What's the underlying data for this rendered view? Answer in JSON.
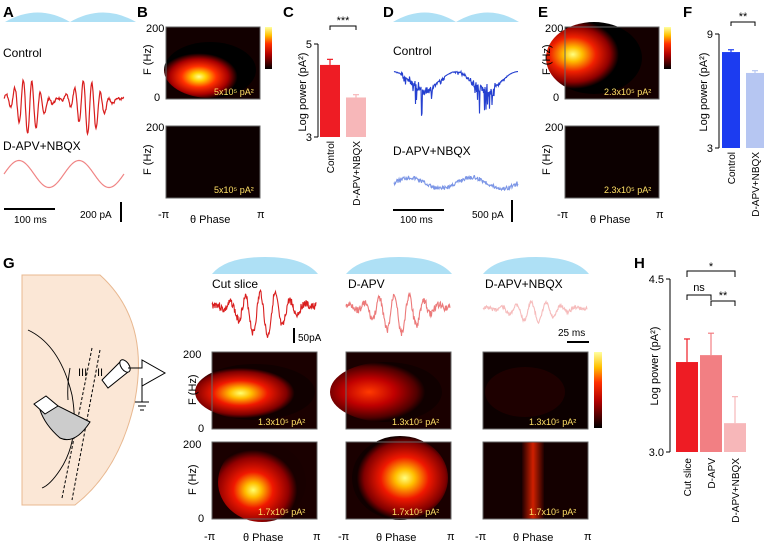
{
  "panels": {
    "A": {
      "letter": "A",
      "control_label": "Control",
      "drug_label": "D-APV+NBQX",
      "time_scale": "100 ms",
      "amp_scale": "200 pA"
    },
    "B": {
      "letter": "B",
      "ylabel": "F (Hz)",
      "ytick_top": "200",
      "ytick_bottom": "0",
      "power_label_top": "5x10⁵ pA²",
      "power_label_bottom": "5x10⁵ pA²",
      "xticks": [
        "-π",
        "π"
      ],
      "xlabel": "θ Phase"
    },
    "C": {
      "letter": "C",
      "sig": "***"
    },
    "D": {
      "letter": "D",
      "control_label": "Control",
      "drug_label": "D-APV+NBQX",
      "time_scale": "100 ms",
      "amp_scale": "500 pA"
    },
    "E": {
      "letter": "E",
      "ylabel": "F (Hz)",
      "ytick_top": "200",
      "ytick_bottom": "0",
      "power_label_top": "2.3x10⁵ pA²",
      "power_label_bottom": "2.3x10⁵ pA²",
      "xticks": [
        "-π",
        "π"
      ],
      "xlabel": "θ Phase"
    },
    "F": {
      "letter": "F",
      "sig": "**"
    },
    "G": {
      "letter": "G",
      "layer_labels": [
        "III",
        "II"
      ],
      "trace_titles": [
        "Cut slice",
        "D-APV",
        "D-APV+NBQX"
      ],
      "amp_scale": "50pA",
      "time_scale": "25 ms",
      "ylabel": "F (Hz)",
      "ytick_top": "200",
      "ytick_bottom": "0",
      "power_label_top": "1.3x10⁵ pA²",
      "power_label_bottom": "1.7x10⁵ pA²",
      "xticks": [
        "-π",
        "π"
      ],
      "xlabel": "θ Phase"
    },
    "H": {
      "letter": "H",
      "sig_ns": "ns",
      "sig_star": "*",
      "sig_dstar": "**"
    }
  },
  "chart_data": [
    {
      "id": "C",
      "type": "bar",
      "categories": [
        "Control",
        "D-APV+NBQX"
      ],
      "values": [
        4.55,
        3.85
      ],
      "errors": [
        0.12,
        0.06
      ],
      "ylabel": "Log power (pA²)",
      "yticks": [
        3,
        5
      ],
      "ylim": [
        3,
        5
      ],
      "colors": [
        "#ee1c24",
        "#f7b7b9"
      ]
    },
    {
      "id": "F",
      "type": "bar",
      "categories": [
        "Control",
        "D-APV+NBQX"
      ],
      "values": [
        8.05,
        6.95
      ],
      "errors": [
        0.12,
        0.12
      ],
      "ylabel": "Log power (pA²)",
      "yticks": [
        3,
        9
      ],
      "ylim": [
        3,
        9
      ],
      "colors": [
        "#1c3cf0",
        "#b6c6f2"
      ]
    },
    {
      "id": "H",
      "type": "bar",
      "categories": [
        "Cut slice",
        "D-APV",
        "D-APV+NBQX"
      ],
      "values": [
        3.78,
        3.84,
        3.25
      ],
      "errors": [
        0.2,
        0.19,
        0.23
      ],
      "ylabel": "Log power (pA²)",
      "yticks": [
        3.0,
        4.5
      ],
      "ytick_labels": [
        "3.0",
        "4.5"
      ],
      "ylim": [
        3.0,
        4.5
      ],
      "colors": [
        "#ee1c24",
        "#f27f83",
        "#f7b7b9"
      ]
    }
  ]
}
